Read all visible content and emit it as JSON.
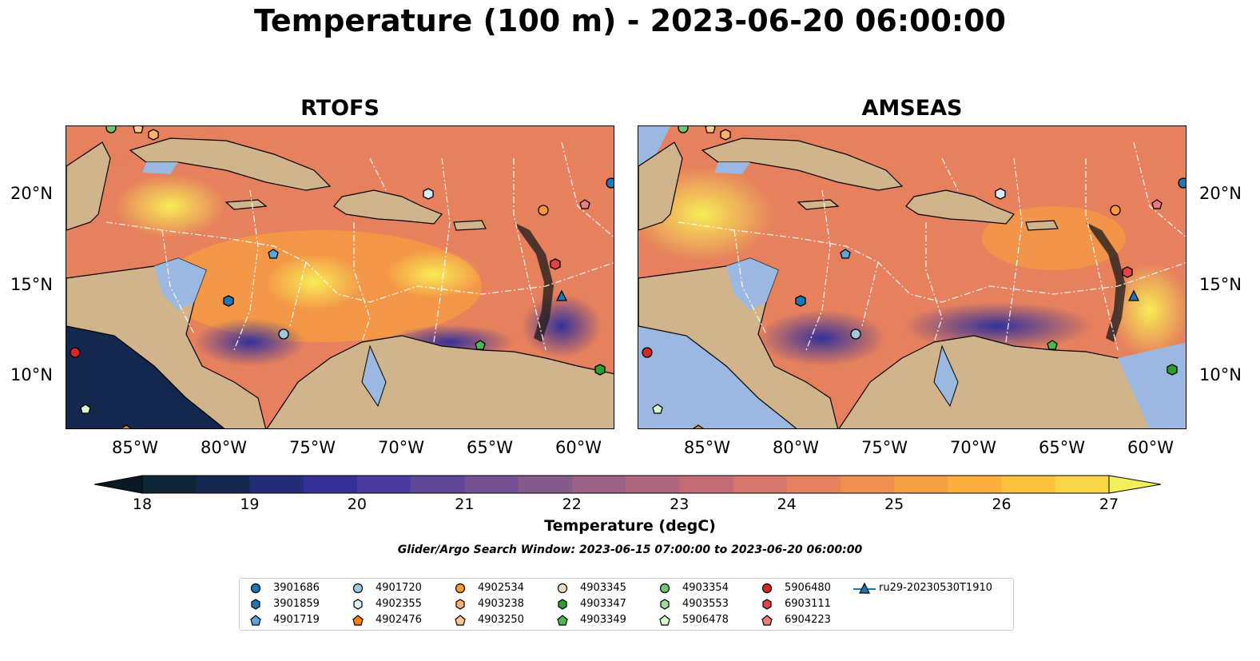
{
  "title": "Temperature (100 m) - 2023-06-20 06:00:00",
  "panels": [
    {
      "name": "RTOFS"
    },
    {
      "name": "AMSEAS"
    }
  ],
  "lon_labels": [
    "85°W",
    "80°W",
    "75°W",
    "70°W",
    "65°W",
    "60°W"
  ],
  "lat_labels": [
    "20°N",
    "15°N",
    "10°N"
  ],
  "colorbar": {
    "label": "Temperature (degC)",
    "min": 18,
    "max": 27,
    "ticks": [
      "18",
      "19",
      "20",
      "21",
      "22",
      "23",
      "24",
      "25",
      "26",
      "27"
    ],
    "colors": [
      "#0d2535",
      "#14274f",
      "#232d79",
      "#33309a",
      "#4a3c9e",
      "#5f4698",
      "#735192",
      "#865a8c",
      "#9b6186",
      "#b0667e",
      "#c46c74",
      "#d6756a",
      "#e6805d",
      "#f08f4e",
      "#f79d42",
      "#fbae3a",
      "#fcc13c",
      "#f8d647"
    ]
  },
  "search_window": "Glider/Argo Search Window: 2023-06-15 07:00:00 to 2023-06-20 06:00:00",
  "legend": [
    {
      "label": "3901686",
      "marker": "circle",
      "color": "#1f77b4"
    },
    {
      "label": "3901859",
      "marker": "hexagon",
      "color": "#1f77b4"
    },
    {
      "label": "4901719",
      "marker": "pentagon",
      "color": "#5fa2dd"
    },
    {
      "label": "4901720",
      "marker": "circle",
      "color": "#9ecae1"
    },
    {
      "label": "4902355",
      "marker": "hexagon",
      "color": "#d6ecfa"
    },
    {
      "label": "4902476",
      "marker": "pentagon",
      "color": "#ff7f0e"
    },
    {
      "label": "4902534",
      "marker": "circle",
      "color": "#fd9a3e"
    },
    {
      "label": "4903238",
      "marker": "hexagon",
      "color": "#fdb06b"
    },
    {
      "label": "4903250",
      "marker": "pentagon",
      "color": "#fdc690"
    },
    {
      "label": "4903345",
      "marker": "circle",
      "color": "#fde0c4"
    },
    {
      "label": "4903347",
      "marker": "hexagon",
      "color": "#2ca02c"
    },
    {
      "label": "4903349",
      "marker": "pentagon",
      "color": "#4cb84c"
    },
    {
      "label": "4903354",
      "marker": "circle",
      "color": "#74c476"
    },
    {
      "label": "4903553",
      "marker": "hexagon",
      "color": "#a1d99b"
    },
    {
      "label": "5906478",
      "marker": "pentagon",
      "color": "#d9f7cf"
    },
    {
      "label": "5906480",
      "marker": "circle",
      "color": "#d62728"
    },
    {
      "label": "6903111",
      "marker": "hexagon",
      "color": "#e04545"
    },
    {
      "label": "6904223",
      "marker": "pentagon",
      "color": "#ef7b7b"
    },
    {
      "label": "ru29-20230530T1910",
      "marker": "triangle",
      "color": "#1f77b4"
    }
  ],
  "colors": {
    "land": "#d2b48c",
    "shallow_water": "#9bb8e0",
    "eez_lines": "#ffffff"
  }
}
